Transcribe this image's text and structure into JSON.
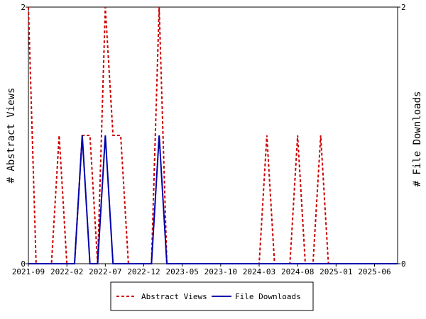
{
  "chart_data": {
    "type": "line",
    "title": "",
    "ylabel_left": "# Abstract Views",
    "ylabel_right": "# File Downloads",
    "ylim_left": [
      0,
      2
    ],
    "ylim_right": [
      0,
      2
    ],
    "y_ticks_left": [
      "0",
      "2"
    ],
    "y_ticks_right": [
      "0",
      "2"
    ],
    "x_ticks": [
      "2021-09",
      "2022-02",
      "2022-07",
      "2022-12",
      "2023-05",
      "2023-10",
      "2024-03",
      "2024-08",
      "2025-01",
      "2025-06"
    ],
    "x_start": "2021-09",
    "x_end": "2025-09",
    "grid": false,
    "legend_position": "bottom",
    "series": [
      {
        "name": "Abstract Views",
        "color": "#cc0000",
        "style": "dashed",
        "axis": "left",
        "points": [
          [
            "2021-09",
            2
          ],
          [
            "2021-10",
            0
          ],
          [
            "2021-11",
            0
          ],
          [
            "2021-12",
            0
          ],
          [
            "2022-01",
            1
          ],
          [
            "2022-02",
            0
          ],
          [
            "2022-03",
            0
          ],
          [
            "2022-04",
            1
          ],
          [
            "2022-05",
            1
          ],
          [
            "2022-06",
            0
          ],
          [
            "2022-07",
            2
          ],
          [
            "2022-08",
            1
          ],
          [
            "2022-09",
            1
          ],
          [
            "2022-10",
            0
          ],
          [
            "2022-11",
            0
          ],
          [
            "2022-12",
            0
          ],
          [
            "2023-01",
            0
          ],
          [
            "2023-02",
            2
          ],
          [
            "2023-03",
            0
          ],
          [
            "2023-04",
            0
          ],
          [
            "2023-05",
            0
          ],
          [
            "2023-06",
            0
          ],
          [
            "2023-07",
            0
          ],
          [
            "2023-08",
            0
          ],
          [
            "2023-09",
            0
          ],
          [
            "2023-10",
            0
          ],
          [
            "2023-11",
            0
          ],
          [
            "2023-12",
            0
          ],
          [
            "2024-01",
            0
          ],
          [
            "2024-02",
            0
          ],
          [
            "2024-03",
            0
          ],
          [
            "2024-04",
            1
          ],
          [
            "2024-05",
            0
          ],
          [
            "2024-06",
            0
          ],
          [
            "2024-07",
            0
          ],
          [
            "2024-08",
            1
          ],
          [
            "2024-09",
            0
          ],
          [
            "2024-10",
            0
          ],
          [
            "2024-11",
            1
          ],
          [
            "2024-12",
            0
          ],
          [
            "2025-01",
            0
          ],
          [
            "2025-02",
            0
          ],
          [
            "2025-03",
            0
          ],
          [
            "2025-04",
            0
          ],
          [
            "2025-05",
            0
          ],
          [
            "2025-06",
            0
          ],
          [
            "2025-07",
            0
          ],
          [
            "2025-08",
            0
          ],
          [
            "2025-09",
            0
          ]
        ]
      },
      {
        "name": "File Downloads",
        "color": "#0000aa",
        "style": "solid",
        "axis": "right",
        "points": [
          [
            "2021-09",
            0
          ],
          [
            "2021-10",
            0
          ],
          [
            "2021-11",
            0
          ],
          [
            "2021-12",
            0
          ],
          [
            "2022-01",
            0
          ],
          [
            "2022-02",
            0
          ],
          [
            "2022-03",
            0
          ],
          [
            "2022-04",
            1
          ],
          [
            "2022-05",
            0
          ],
          [
            "2022-06",
            0
          ],
          [
            "2022-07",
            1
          ],
          [
            "2022-08",
            0
          ],
          [
            "2022-09",
            0
          ],
          [
            "2022-10",
            0
          ],
          [
            "2022-11",
            0
          ],
          [
            "2022-12",
            0
          ],
          [
            "2023-01",
            0
          ],
          [
            "2023-02",
            1
          ],
          [
            "2023-03",
            0
          ],
          [
            "2023-04",
            0
          ],
          [
            "2023-05",
            0
          ],
          [
            "2023-06",
            0
          ],
          [
            "2023-07",
            0
          ],
          [
            "2023-08",
            0
          ],
          [
            "2023-09",
            0
          ],
          [
            "2023-10",
            0
          ],
          [
            "2023-11",
            0
          ],
          [
            "2023-12",
            0
          ],
          [
            "2024-01",
            0
          ],
          [
            "2024-02",
            0
          ],
          [
            "2024-03",
            0
          ],
          [
            "2024-04",
            0
          ],
          [
            "2024-05",
            0
          ],
          [
            "2024-06",
            0
          ],
          [
            "2024-07",
            0
          ],
          [
            "2024-08",
            0
          ],
          [
            "2024-09",
            0
          ],
          [
            "2024-10",
            0
          ],
          [
            "2024-11",
            0
          ],
          [
            "2024-12",
            0
          ],
          [
            "2025-01",
            0
          ],
          [
            "2025-02",
            0
          ],
          [
            "2025-03",
            0
          ],
          [
            "2025-04",
            0
          ],
          [
            "2025-05",
            0
          ],
          [
            "2025-06",
            0
          ],
          [
            "2025-07",
            0
          ],
          [
            "2025-08",
            0
          ],
          [
            "2025-09",
            0
          ]
        ]
      }
    ]
  }
}
